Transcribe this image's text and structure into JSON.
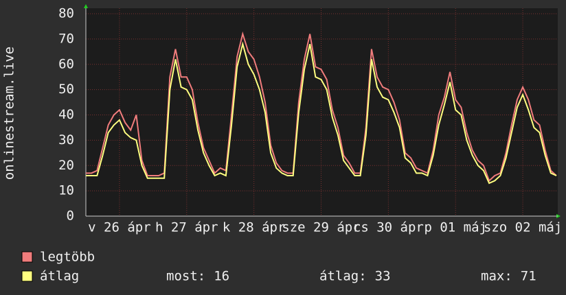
{
  "chart_data": {
    "type": "line",
    "y_label": "onlinestream.live",
    "x": [
      0,
      2,
      4,
      6,
      8,
      10,
      12,
      14,
      16,
      18,
      20,
      22,
      24,
      26,
      28,
      30,
      32,
      34,
      36,
      38,
      40,
      42,
      44,
      46,
      48,
      50,
      52,
      54,
      56,
      58,
      60,
      62,
      64,
      66,
      68,
      70,
      72,
      74,
      76,
      78,
      80,
      82,
      84,
      86,
      88,
      90,
      92,
      94,
      96,
      98,
      100,
      102,
      104,
      106,
      108,
      110,
      112,
      114,
      116,
      118,
      120,
      122,
      124,
      126,
      128,
      130,
      132,
      134,
      136,
      138,
      140,
      142,
      144,
      146,
      148,
      150,
      152,
      154,
      156,
      158,
      160,
      162,
      164,
      166,
      168
    ],
    "xlim": [
      0,
      168
    ],
    "xticks": [
      {
        "value": 12,
        "label": "v 26 ápr"
      },
      {
        "value": 36,
        "label": "h 27 ápr"
      },
      {
        "value": 60,
        "label": "k 28 ápr"
      },
      {
        "value": 84,
        "label": "sze 29 ápr"
      },
      {
        "value": 108,
        "label": "cs 30 ápr"
      },
      {
        "value": 132,
        "label": "p 01 máj"
      },
      {
        "value": 156,
        "label": "szo 02 máj"
      }
    ],
    "ylim": [
      0,
      80
    ],
    "yticks": [
      0,
      10,
      20,
      30,
      40,
      50,
      60,
      70,
      80
    ],
    "grid": true,
    "series": [
      {
        "name": "legtöbb",
        "color": "#f07c7c",
        "values": [
          17,
          17,
          18,
          27,
          36,
          40,
          42,
          37,
          34,
          40,
          22,
          16,
          16,
          16,
          17,
          55,
          66,
          55,
          55,
          50,
          37,
          27,
          22,
          17,
          19,
          18,
          40,
          63,
          72,
          65,
          62,
          55,
          45,
          28,
          21,
          18,
          17,
          17,
          45,
          62,
          72,
          59,
          58,
          54,
          42,
          35,
          24,
          21,
          17,
          17,
          35,
          66,
          55,
          51,
          50,
          45,
          38,
          25,
          23,
          19,
          18,
          17,
          26,
          40,
          47,
          57,
          46,
          43,
          33,
          26,
          22,
          20,
          14,
          16,
          17,
          25,
          36,
          46,
          51,
          46,
          38,
          36,
          26,
          18,
          16
        ]
      },
      {
        "name": "átlag",
        "color": "#ffff80",
        "values": [
          16,
          16,
          16,
          24,
          33,
          36,
          38,
          33,
          31,
          30,
          20,
          15,
          15,
          15,
          15,
          50,
          62,
          51,
          50,
          46,
          34,
          25,
          20,
          16,
          17,
          16,
          36,
          59,
          68,
          60,
          56,
          50,
          41,
          25,
          19,
          17,
          16,
          16,
          41,
          58,
          68,
          55,
          54,
          50,
          39,
          32,
          22,
          19,
          16,
          16,
          32,
          62,
          51,
          47,
          46,
          41,
          35,
          23,
          21,
          17,
          17,
          16,
          24,
          36,
          44,
          53,
          42,
          40,
          30,
          24,
          20,
          18,
          13,
          14,
          16,
          23,
          33,
          43,
          48,
          42,
          35,
          33,
          24,
          17,
          16
        ]
      }
    ],
    "legend_stats": [
      {
        "label": "most:",
        "value": 16
      },
      {
        "label": "átlag:",
        "value": 33
      },
      {
        "label": "max:",
        "value": 71
      }
    ]
  }
}
